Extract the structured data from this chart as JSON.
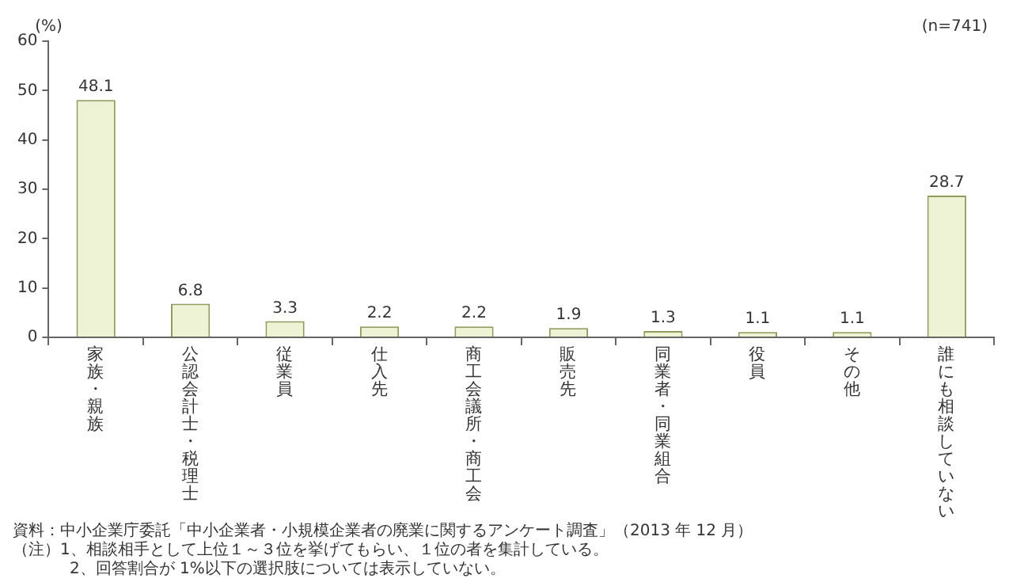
{
  "chart_data": {
    "type": "bar",
    "ylabel": "(%)",
    "categories": [
      "家族・親族",
      "公認会計士・税理士",
      "従業員",
      "仕入先",
      "商工会議所・商工会",
      "販売先",
      "同業者・同業組合",
      "役員",
      "その他",
      "誰にも相談していない"
    ],
    "values": [
      48.1,
      6.8,
      3.3,
      2.2,
      2.2,
      1.9,
      1.3,
      1.1,
      1.1,
      28.7
    ],
    "color": "#eef3d6",
    "data_labels": true,
    "ylim": [
      0,
      60
    ],
    "yticks": [
      0,
      10,
      20,
      30,
      40,
      50,
      60
    ],
    "grid": false,
    "legend": false,
    "annotations": [
      "(n=741)",
      "資料：中小企業庁委託「中小企業者・小規模企業者の廃業に関するアンケート調査」（2013 年 12 月）",
      "（注）1、相談相手として上位１～３位を挙げてもらい、１位の者を集計している。",
      "2、回答割合が 1%以下の選択肢については表示していない。"
    ]
  }
}
